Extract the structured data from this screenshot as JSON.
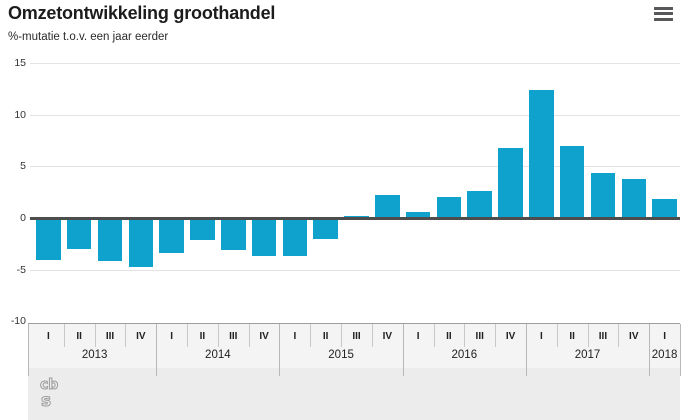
{
  "header": {
    "title": "Omzetontwikkeling groothandel",
    "subtitle": "%-mutatie t.o.v. een jaar eerder",
    "menu_icon": "hamburger-menu-icon"
  },
  "chart_data": {
    "type": "bar",
    "title": "Omzetontwikkeling groothandel",
    "subtitle": "%-mutatie t.o.v. een jaar eerder",
    "unit": "%",
    "bar_color": "#0fa2cc",
    "zero_line_color": "#4d4d4d",
    "grid": true,
    "ylim": [
      -10,
      15
    ],
    "yticks": [
      15,
      10,
      5,
      0,
      -5,
      -10
    ],
    "years": [
      {
        "year": "2013",
        "quarters": [
          "I",
          "II",
          "III",
          "IV"
        ],
        "values": [
          -4.1,
          -3.0,
          -4.2,
          -4.7
        ]
      },
      {
        "year": "2014",
        "quarters": [
          "I",
          "II",
          "III",
          "IV"
        ],
        "values": [
          -3.4,
          -2.1,
          -3.1,
          -3.7
        ]
      },
      {
        "year": "2015",
        "quarters": [
          "I",
          "II",
          "III",
          "IV"
        ],
        "values": [
          -3.7,
          -2.0,
          0.2,
          2.2
        ]
      },
      {
        "year": "2016",
        "quarters": [
          "I",
          "II",
          "III",
          "IV"
        ],
        "values": [
          0.6,
          2.0,
          2.6,
          6.8
        ]
      },
      {
        "year": "2017",
        "quarters": [
          "I",
          "II",
          "III",
          "IV"
        ],
        "values": [
          12.4,
          7.0,
          4.4,
          3.8
        ]
      },
      {
        "year": "2018",
        "quarters": [
          "I"
        ],
        "values": [
          1.8
        ]
      }
    ]
  },
  "footer": {
    "logo": "cbs-logo",
    "logo_text_top": "cb",
    "logo_text_bottom": "s"
  }
}
